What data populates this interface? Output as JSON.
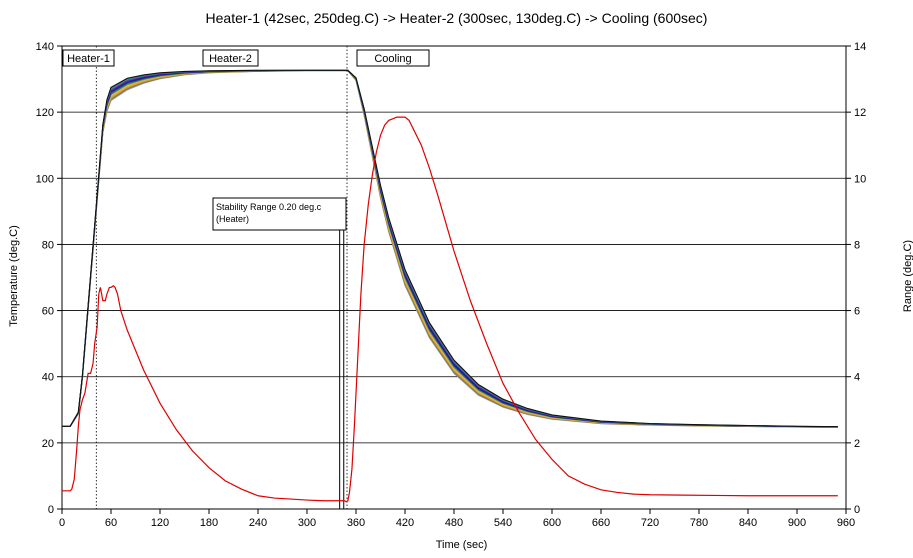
{
  "chart_data": {
    "type": "line",
    "title": "Heater-1 (42sec, 250deg.C) -> Heater-2 (300sec, 130deg.C) -> Cooling (600sec)",
    "xlabel": "Time (sec)",
    "ylabel": "Temperature (deg.C)",
    "y2label": "Range (deg.C)",
    "xlim": [
      0,
      960
    ],
    "ylim": [
      0,
      140
    ],
    "y2lim": [
      0,
      14
    ],
    "xticks": [
      0,
      60,
      120,
      180,
      240,
      300,
      360,
      420,
      480,
      540,
      600,
      660,
      720,
      780,
      840,
      900,
      960
    ],
    "yticks": [
      0,
      20,
      40,
      60,
      80,
      100,
      120,
      140
    ],
    "y2ticks": [
      0,
      2,
      4,
      6,
      8,
      10,
      12,
      14
    ],
    "grid": "horizontal",
    "annotations": {
      "heater1": "Heater-1",
      "heater2": "Heater-2",
      "cooling": "Cooling",
      "stability_line1": "Stability Range 0.20 deg.c",
      "stability_line2": "(Heater)"
    },
    "temperature_series": {
      "colors": [
        "#9a9a9a",
        "#6e6e6e",
        "#c8a000",
        "#e3a33a",
        "#f0b070",
        "#5a9a2a",
        "#2a5a8a",
        "#1a1a7a",
        "#2020b0",
        "#7a3a9a",
        "#2a8a8a",
        "#101010"
      ],
      "x": [
        0,
        10,
        15,
        20,
        25,
        30,
        35,
        40,
        45,
        50,
        55,
        60,
        80,
        100,
        120,
        150,
        180,
        240,
        300,
        340,
        350,
        360,
        370,
        380,
        390,
        400,
        420,
        450,
        480,
        510,
        540,
        570,
        600,
        660,
        720,
        780,
        840,
        900,
        950
      ],
      "mean": [
        25,
        25,
        27,
        29,
        40,
        55,
        70,
        85,
        100,
        115,
        122,
        125.5,
        128.5,
        130,
        131,
        131.8,
        132.2,
        132.5,
        132.6,
        132.6,
        132.6,
        130,
        120,
        108,
        96,
        86,
        70,
        54,
        43,
        36,
        32,
        29.5,
        27.8,
        26.2,
        25.6,
        25.3,
        25.1,
        24.9,
        24.8
      ],
      "spread": [
        0,
        0,
        0.3,
        0.5,
        0.8,
        1.0,
        1.2,
        1.5,
        1.8,
        2.5,
        3.5,
        4.0,
        3.5,
        2.5,
        1.8,
        1.0,
        0.6,
        0.3,
        0.1,
        0.1,
        0.1,
        0.8,
        2.0,
        3.0,
        3.8,
        4.3,
        4.8,
        4.6,
        4.0,
        3.2,
        2.4,
        1.8,
        1.3,
        0.8,
        0.5,
        0.4,
        0.3,
        0.2,
        0.2
      ]
    },
    "range_series": {
      "name": "",
      "axis": "right",
      "color": "#e00000",
      "x": [
        0,
        5,
        10,
        12,
        15,
        18,
        20,
        22,
        25,
        28,
        30,
        32,
        35,
        38,
        40,
        43,
        45,
        47,
        50,
        53,
        55,
        58,
        60,
        63,
        65,
        68,
        72,
        80,
        90,
        100,
        120,
        140,
        160,
        180,
        200,
        220,
        240,
        260,
        280,
        300,
        320,
        340,
        346,
        348,
        350,
        352,
        355,
        358,
        362,
        366,
        370,
        375,
        380,
        385,
        390,
        395,
        400,
        405,
        410,
        415,
        420,
        425,
        430,
        440,
        450,
        460,
        480,
        500,
        520,
        540,
        560,
        580,
        600,
        620,
        640,
        660,
        680,
        700,
        720,
        760,
        800,
        840,
        880,
        920,
        950
      ],
      "y": [
        0.55,
        0.55,
        0.55,
        0.6,
        0.9,
        1.8,
        2.5,
        3.0,
        3.3,
        3.5,
        3.8,
        4.1,
        4.1,
        4.4,
        5.0,
        5.5,
        6.5,
        6.7,
        6.3,
        6.3,
        6.5,
        6.7,
        6.7,
        6.75,
        6.7,
        6.5,
        6.0,
        5.4,
        4.8,
        4.2,
        3.2,
        2.4,
        1.75,
        1.25,
        0.85,
        0.6,
        0.4,
        0.33,
        0.3,
        0.27,
        0.25,
        0.25,
        0.25,
        0.22,
        0.25,
        0.5,
        1.2,
        2.5,
        4.5,
        6.5,
        8.0,
        9.2,
        10.1,
        10.8,
        11.3,
        11.6,
        11.75,
        11.8,
        11.85,
        11.85,
        11.85,
        11.75,
        11.5,
        11.0,
        10.3,
        9.5,
        7.8,
        6.3,
        5.0,
        3.8,
        2.9,
        2.1,
        1.5,
        1.0,
        0.75,
        0.58,
        0.5,
        0.45,
        0.43,
        0.42,
        0.41,
        0.4,
        0.4,
        0.4,
        0.4
      ]
    }
  }
}
